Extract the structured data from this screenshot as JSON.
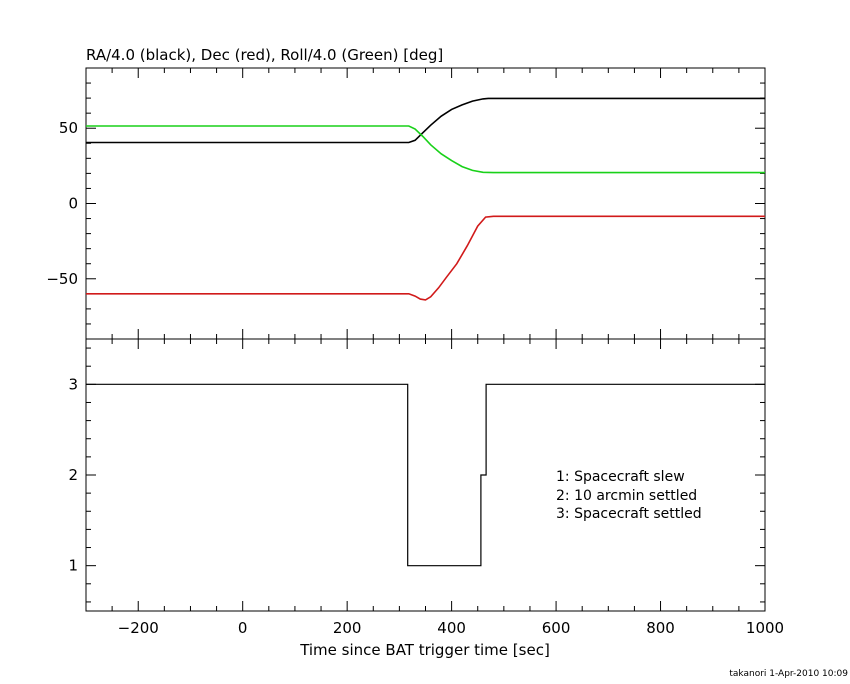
{
  "chart_data": [
    {
      "type": "line",
      "title": "RA/4.0 (black), Dec (red), Roll/4.0 (Green) [deg]",
      "xlim": [
        -300,
        1000
      ],
      "ylim": [
        -90,
        90
      ],
      "yticks": [
        -50,
        0,
        50
      ],
      "ytick_labels": [
        "−50",
        "0",
        "50"
      ],
      "colors": {
        "ra": "#000000",
        "dec": "#d11a1a",
        "roll": "#19d119"
      },
      "series": [
        {
          "key": "ra",
          "points": [
            [
              -300,
              40.5
            ],
            [
              318,
              40.5
            ],
            [
              330,
              42
            ],
            [
              345,
              47
            ],
            [
              360,
              52
            ],
            [
              380,
              58
            ],
            [
              400,
              62.5
            ],
            [
              420,
              65.5
            ],
            [
              440,
              68
            ],
            [
              460,
              69.5
            ],
            [
              470,
              69.8
            ],
            [
              1000,
              69.8
            ]
          ]
        },
        {
          "key": "dec",
          "points": [
            [
              -300,
              -60
            ],
            [
              318,
              -60
            ],
            [
              330,
              -61.5
            ],
            [
              340,
              -63.5
            ],
            [
              350,
              -64
            ],
            [
              360,
              -62
            ],
            [
              375,
              -56
            ],
            [
              390,
              -49
            ],
            [
              410,
              -40
            ],
            [
              430,
              -28
            ],
            [
              450,
              -15
            ],
            [
              465,
              -9
            ],
            [
              480,
              -8.5
            ],
            [
              1000,
              -8.5
            ]
          ]
        },
        {
          "key": "roll",
          "points": [
            [
              -300,
              51.5
            ],
            [
              318,
              51.5
            ],
            [
              330,
              49.5
            ],
            [
              345,
              44.5
            ],
            [
              360,
              39
            ],
            [
              380,
              33
            ],
            [
              400,
              28.5
            ],
            [
              420,
              24.5
            ],
            [
              440,
              22
            ],
            [
              460,
              20.7
            ],
            [
              480,
              20.5
            ],
            [
              1000,
              20.5
            ]
          ]
        }
      ]
    },
    {
      "type": "line",
      "xlabel": "Time since BAT trigger time [sec]",
      "xlim": [
        -300,
        1000
      ],
      "ylim": [
        0.5,
        3.5
      ],
      "xticks": [
        -200,
        0,
        200,
        400,
        600,
        800,
        1000
      ],
      "xtick_labels": [
        "−200",
        "0",
        "200",
        "400",
        "600",
        "800",
        "1000"
      ],
      "yticks": [
        1,
        2,
        3
      ],
      "ytick_labels": [
        "1",
        "2",
        "3"
      ],
      "series": [
        {
          "key": "status",
          "points": [
            [
              -300,
              3
            ],
            [
              316,
              3
            ],
            [
              316,
              1
            ],
            [
              456,
              1
            ],
            [
              456,
              2
            ],
            [
              466,
              2
            ],
            [
              466,
              3
            ],
            [
              1000,
              3
            ]
          ]
        }
      ],
      "legend_lines": [
        "1: Spacecraft slew",
        "2: 10 arcmin settled",
        "3: Spacecraft settled"
      ]
    }
  ],
  "footer": {
    "credit": "takanori   1-Apr-2010 10:09"
  }
}
